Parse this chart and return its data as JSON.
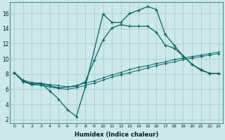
{
  "xlabel": "Humidex (Indice chaleur)",
  "bg_color": "#cce8e8",
  "grid_color": "#aacccc",
  "line_color": "#006666",
  "xlim": [
    -0.5,
    23.5
  ],
  "ylim": [
    1.5,
    17.5
  ],
  "xticks": [
    0,
    1,
    2,
    3,
    4,
    5,
    6,
    7,
    8,
    9,
    10,
    11,
    12,
    13,
    14,
    15,
    16,
    17,
    18,
    19,
    20,
    21,
    22,
    23
  ],
  "yticks": [
    2,
    4,
    6,
    8,
    10,
    12,
    14,
    16
  ],
  "series1_x": [
    0,
    1,
    2,
    3,
    4,
    5,
    6,
    7,
    8,
    10,
    11,
    12,
    13,
    14,
    15,
    16,
    17,
    18,
    19,
    20,
    21,
    22,
    23
  ],
  "series1_y": [
    8.2,
    7.0,
    6.7,
    6.8,
    5.8,
    4.7,
    3.3,
    2.4,
    6.3,
    15.9,
    14.8,
    14.8,
    16.0,
    16.4,
    16.9,
    16.5,
    13.2,
    11.8,
    10.4,
    9.3,
    8.5,
    8.1,
    8.1
  ],
  "series2_x": [
    0,
    1,
    2,
    3,
    5,
    7,
    8,
    9,
    10,
    11,
    12,
    13,
    14,
    15,
    16,
    17,
    18,
    19,
    20,
    21,
    22,
    23
  ],
  "series2_y": [
    8.2,
    7.1,
    6.7,
    6.7,
    6.2,
    6.4,
    7.0,
    9.8,
    12.5,
    14.1,
    14.5,
    14.3,
    14.3,
    14.3,
    13.5,
    11.8,
    11.4,
    10.4,
    9.3,
    8.6,
    8.1,
    8.1
  ],
  "series3_x": [
    0,
    1,
    2,
    3,
    4,
    5,
    6,
    7,
    8,
    9,
    10,
    11,
    12,
    13,
    14,
    15,
    16,
    17,
    18,
    19,
    20,
    21,
    22,
    23
  ],
  "series3_y": [
    8.2,
    7.0,
    6.6,
    6.5,
    6.3,
    6.1,
    6.0,
    6.2,
    6.5,
    6.8,
    7.2,
    7.6,
    7.9,
    8.2,
    8.5,
    8.8,
    9.1,
    9.4,
    9.6,
    9.9,
    10.1,
    10.3,
    10.5,
    10.7
  ],
  "series4_x": [
    0,
    1,
    2,
    3,
    4,
    5,
    6,
    7,
    8,
    9,
    10,
    11,
    12,
    13,
    14,
    15,
    16,
    17,
    18,
    19,
    20,
    21,
    22,
    23
  ],
  "series4_y": [
    8.2,
    7.2,
    6.9,
    6.8,
    6.6,
    6.5,
    6.3,
    6.5,
    6.8,
    7.1,
    7.5,
    7.9,
    8.2,
    8.6,
    8.9,
    9.1,
    9.4,
    9.6,
    9.9,
    10.1,
    10.3,
    10.5,
    10.7,
    10.9
  ]
}
